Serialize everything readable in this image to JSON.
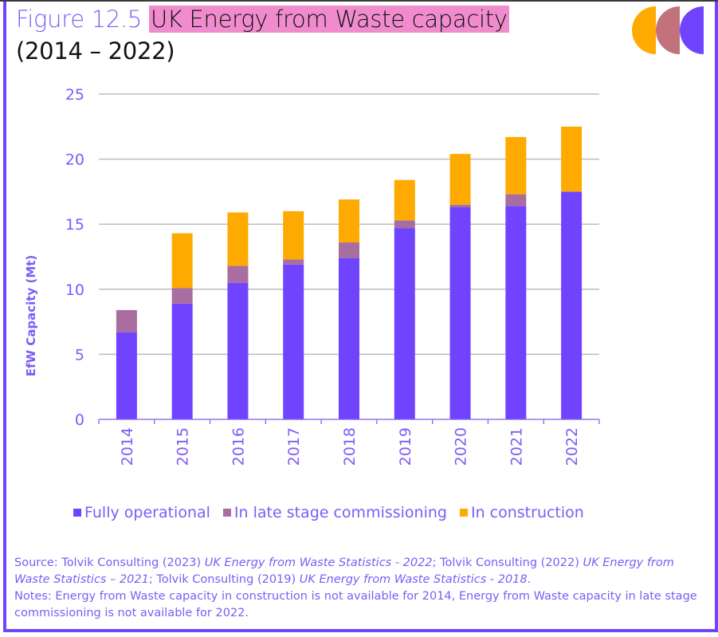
{
  "header": {
    "figure_label": "Figure 12.5",
    "title": "UK Energy from Waste capacity",
    "subtitle": "(2014 – 2022)"
  },
  "logo": {
    "icon": "three-half-circles-logo",
    "colors": [
      "#ffaa00",
      "#c2727a",
      "#7044ff"
    ]
  },
  "chart_data": {
    "type": "bar",
    "stacked": true,
    "title": "UK Energy from Waste capacity (2014 – 2022)",
    "xlabel": "",
    "ylabel": "EfW Capacity (Mt)",
    "ylim": [
      0,
      25
    ],
    "yticks": [
      "0",
      "5",
      "10",
      "15",
      "20",
      "25"
    ],
    "ytick_values": [
      0,
      5,
      10,
      15,
      20,
      25
    ],
    "grid": true,
    "legend_position": "bottom",
    "categories": [
      "2014",
      "2015",
      "2016",
      "2017",
      "2018",
      "2019",
      "2020",
      "2021",
      "2022"
    ],
    "series": [
      {
        "name": "Fully operational",
        "color": "#7044ff",
        "values": [
          6.7,
          8.9,
          10.5,
          11.9,
          12.4,
          14.7,
          16.3,
          16.4,
          17.5
        ]
      },
      {
        "name": "In late stage commissioning",
        "color": "#a86ea0",
        "values": [
          1.7,
          1.2,
          1.3,
          0.4,
          1.2,
          0.6,
          0.2,
          0.9,
          0
        ]
      },
      {
        "name": "In construction",
        "color": "#ffaa00",
        "values": [
          0,
          4.2,
          4.1,
          3.7,
          3.3,
          3.1,
          3.9,
          4.4,
          5.0
        ]
      }
    ]
  },
  "footer": {
    "source_parts": [
      "Source: Tolvik Consulting (2023) ",
      "UK Energy from Waste Statistics - 2022",
      "; Tolvik Consulting (2022) ",
      "UK Energy from Waste Statistics – 2021",
      "; Tolvik Consulting (2019) ",
      "UK Energy from Waste Statistics - 2018",
      "."
    ],
    "notes": "Notes: Energy from Waste capacity in construction is not available for 2014, Energy from Waste capacity in late stage commissioning is not available for 2022."
  }
}
